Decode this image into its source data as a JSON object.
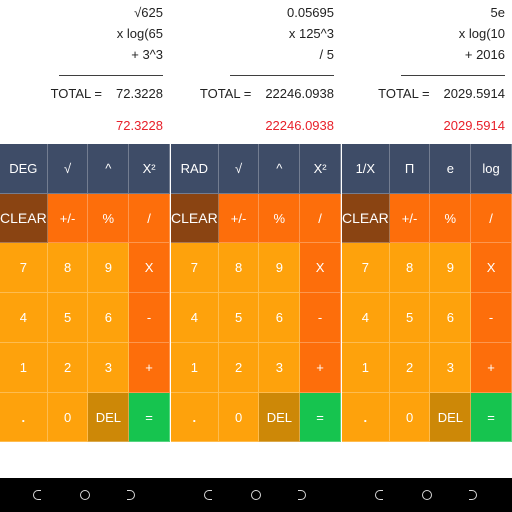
{
  "panels": [
    {
      "expression": [
        "√625",
        "x log(65",
        "+ 3^3",
        "————————"
      ],
      "total_label": "TOTAL =",
      "total_value": "72.3228",
      "result": "72.3228",
      "fn_row": [
        "DEG",
        "√",
        "^",
        "X²"
      ]
    },
    {
      "expression": [
        "0.05695",
        "x 125^3",
        "/ 5",
        "————————"
      ],
      "total_label": "TOTAL =",
      "total_value": "22246.0938",
      "result": "22246.0938",
      "fn_row": [
        "RAD",
        "√",
        "^",
        "X²"
      ]
    },
    {
      "expression": [
        "5e",
        "x log(10",
        "+ 2016",
        "————————"
      ],
      "total_label": "TOTAL =",
      "total_value": "2029.5914",
      "result": "2029.5914",
      "fn_row": [
        "1/X",
        "Π",
        "e",
        "log"
      ]
    }
  ],
  "keys": {
    "clear": "CLEAR",
    "plus_minus": "+/-",
    "percent": "%",
    "divide": "/",
    "seven": "7",
    "eight": "8",
    "nine": "9",
    "multiply": "X",
    "four": "4",
    "five": "5",
    "six": "6",
    "minus": "-",
    "one": "1",
    "two": "2",
    "three": "3",
    "plus": "+",
    "dot": ".",
    "zero": "0",
    "del": "DEL",
    "equals": "="
  },
  "colors": {
    "function_key": "#3e4c67",
    "clear_key": "#8a4412",
    "operator_key": "#fd6e0b",
    "number_key": "#fea20c",
    "del_key": "#cd8807",
    "equals_key": "#16c44f",
    "result_text": "#e8202a"
  },
  "navigation_icons": [
    "recent-apps-icon",
    "home-icon",
    "back-icon"
  ]
}
